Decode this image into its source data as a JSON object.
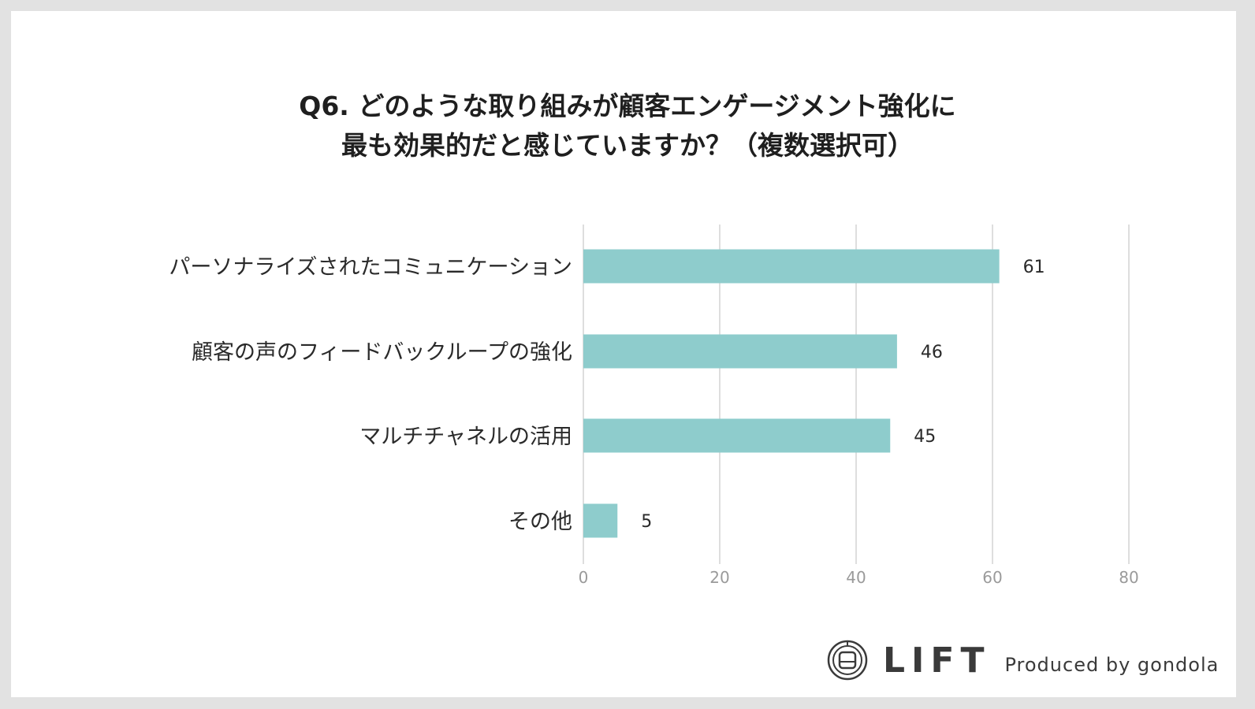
{
  "title": {
    "line1": "Q6. どのような取り組みが顧客エンゲージメント強化に",
    "line2": "最も効果的だと感じていますか？（複数選択可）"
  },
  "chart_data": {
    "type": "bar",
    "orientation": "horizontal",
    "categories": [
      "パーソナライズされたコミュニケーション",
      "顧客の声のフィードバックループの強化",
      "マルチチャネルの活用",
      "その他"
    ],
    "values": [
      61,
      46,
      45,
      5
    ],
    "value_labels": [
      "61",
      "46",
      "45",
      "5"
    ],
    "xlim": [
      0,
      80
    ],
    "ticks": [
      0,
      20,
      40,
      60,
      80
    ],
    "tick_labels": [
      "0",
      "20",
      "40",
      "60",
      "80"
    ],
    "grid": true,
    "bar_color": "#8ecccc",
    "grid_color": "#d4d4d4"
  },
  "footer": {
    "brand": "LIFT",
    "produced_by": "Produced by gondola",
    "logo_icon": "lift-logo-icon"
  }
}
